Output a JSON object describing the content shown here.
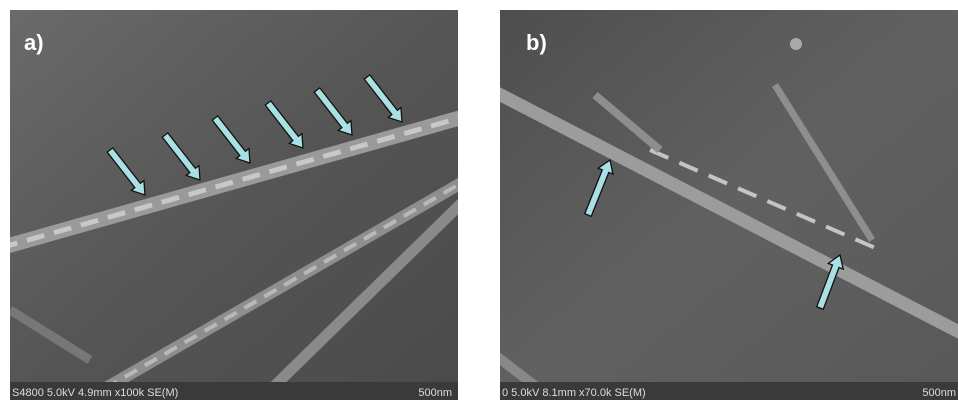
{
  "panels": [
    {
      "label": "a)",
      "info": "S4800 5.0kV 4.9mm x100k SE(M)",
      "scale": "500nm"
    },
    {
      "label": "b)",
      "info": "0 5.0kV 8.1mm x70.0k SE(M)",
      "scale": "500nm"
    }
  ]
}
